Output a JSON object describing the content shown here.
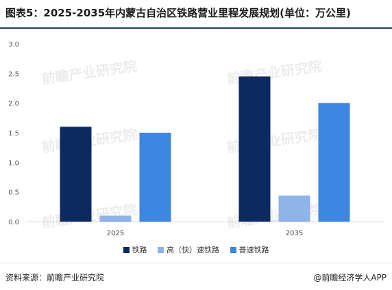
{
  "title": "图表5：2025-2035年内蒙古自治区铁路营业里程发展规划(单位：万公里)",
  "source": "资料来源：前瞻产业研究院",
  "brand": "@前瞻经济学人APP",
  "watermark_text": "前瞻产业研究院",
  "colors": {
    "series_0": "#0d2a5e",
    "series_1": "#8fb4e8",
    "series_2": "#3f86e0"
  },
  "chart_data": {
    "type": "bar",
    "title": "",
    "xlabel": "",
    "ylabel": "",
    "categories": [
      "2025",
      "2035"
    ],
    "series": [
      {
        "name": "铁路",
        "values": [
          1.6,
          2.45
        ]
      },
      {
        "name": "高（快）速铁路",
        "values": [
          0.1,
          0.44
        ]
      },
      {
        "name": "普速铁路",
        "values": [
          1.5,
          2.0
        ]
      }
    ],
    "ylim": [
      0,
      3.0
    ],
    "yticks": [
      "0.0",
      "0.5",
      "1.0",
      "1.5",
      "2.0",
      "2.5",
      "3.0"
    ],
    "grid": false,
    "legend_position": "bottom"
  }
}
